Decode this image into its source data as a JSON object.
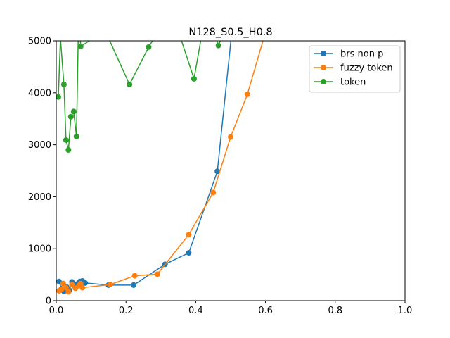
{
  "chart_data": {
    "type": "line",
    "title": "N128_S0.5_H0.8",
    "xlabel": "",
    "ylabel": "",
    "xlim": [
      0,
      1.0
    ],
    "ylim": [
      0,
      5000
    ],
    "x_ticks": [
      "0.0",
      "0.2",
      "0.4",
      "0.6",
      "0.8",
      "1.0"
    ],
    "y_ticks": [
      "0",
      "1000",
      "2000",
      "3000",
      "4000",
      "5000"
    ],
    "grid": false,
    "legend_position": "top-right",
    "series": [
      {
        "name": "brs non p",
        "color": "#1f77b4",
        "marker": "circle",
        "x": [
          0.008,
          0.015,
          0.022,
          0.03,
          0.038,
          0.045,
          0.052,
          0.06,
          0.068,
          0.075,
          0.083,
          0.15,
          0.222,
          0.312,
          0.38,
          0.462,
          0.51
        ],
        "y": [
          370,
          230,
          180,
          260,
          200,
          360,
          280,
          320,
          370,
          380,
          340,
          300,
          300,
          700,
          920,
          2490,
          5600
        ]
      },
      {
        "name": "fuzzy token",
        "color": "#ff7f0e",
        "marker": "circle",
        "x": [
          0.008,
          0.015,
          0.02,
          0.028,
          0.035,
          0.045,
          0.055,
          0.065,
          0.07,
          0.075,
          0.155,
          0.225,
          0.29,
          0.38,
          0.45,
          0.5,
          0.548,
          0.61
        ],
        "y": [
          190,
          220,
          330,
          250,
          170,
          310,
          240,
          290,
          330,
          250,
          310,
          480,
          510,
          1270,
          2080,
          3150,
          3970,
          5400
        ]
      },
      {
        "name": "token",
        "color": "#2ca02c",
        "marker": "circle",
        "x": [
          0.006,
          0.012,
          0.022,
          0.028,
          0.035,
          0.042,
          0.05,
          0.058,
          0.065,
          0.07,
          0.14,
          0.21,
          0.265,
          0.33,
          0.395,
          0.43,
          0.465,
          0.51
        ],
        "y": [
          3920,
          5050,
          4160,
          3090,
          2900,
          3540,
          3640,
          3160,
          5800,
          4890,
          5200,
          4160,
          4880,
          5600,
          4270,
          5600,
          4910,
          5700
        ]
      }
    ]
  }
}
